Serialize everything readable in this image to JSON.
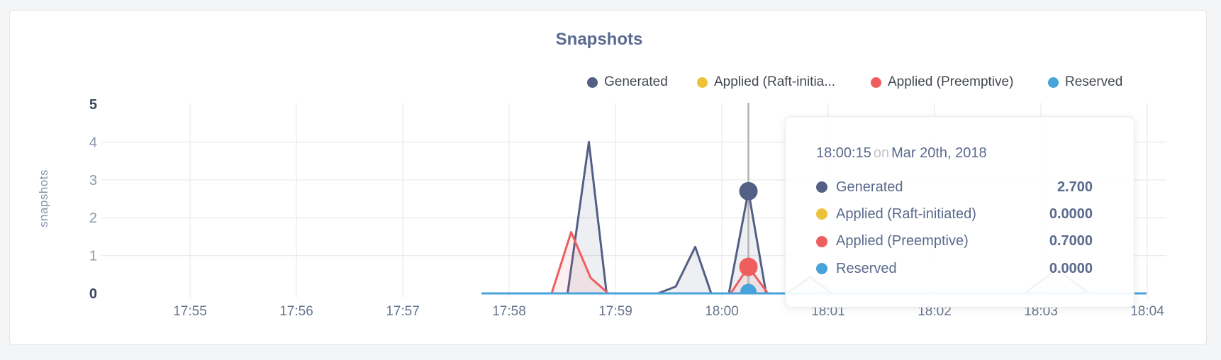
{
  "chart_data": {
    "type": "line",
    "title": "Snapshots",
    "ylabel": "snapshots",
    "xlabel": "",
    "x_ticks": [
      "17:55",
      "17:56",
      "17:57",
      "17:58",
      "17:59",
      "18:00",
      "18:01",
      "18:02",
      "18:03",
      "18:04"
    ],
    "y_ticks": [
      0,
      1,
      2,
      3,
      4,
      5
    ],
    "ylim": [
      0,
      5
    ],
    "grid": true,
    "legend_position": "top-right",
    "x_unit": "time (HH:MM:SS)",
    "series": [
      {
        "name": "Generated",
        "color": "#545f85",
        "fill": "rgba(84,95,133,0.10)",
        "points": [
          [
            "17:57:45",
            0
          ],
          [
            "17:58:33",
            0
          ],
          [
            "17:58:45",
            4.0
          ],
          [
            "17:58:55",
            0
          ],
          [
            "17:59:24",
            0
          ],
          [
            "17:59:34",
            0.18
          ],
          [
            "17:59:45",
            1.23
          ],
          [
            "17:59:54",
            0
          ],
          [
            "18:00:04",
            0
          ],
          [
            "18:00:15",
            2.7
          ],
          [
            "18:00:25",
            0
          ],
          [
            "18:00:37",
            0
          ],
          [
            "18:00:50",
            0.43
          ],
          [
            "18:01:02",
            0
          ],
          [
            "18:02:51",
            0
          ],
          [
            "18:03:09",
            0.65
          ],
          [
            "18:03:27",
            0
          ],
          [
            "18:03:59",
            0
          ]
        ]
      },
      {
        "name": "Applied (Raft-initiated)",
        "color": "#edc239",
        "points": [
          [
            "17:57:45",
            0
          ],
          [
            "18:03:59",
            0
          ]
        ]
      },
      {
        "name": "Applied (Preemptive)",
        "color": "#ef5e5e",
        "fill": "rgba(239,94,94,0.09)",
        "points": [
          [
            "17:57:45",
            0
          ],
          [
            "17:58:24",
            0
          ],
          [
            "17:58:35",
            1.62
          ],
          [
            "17:58:46",
            0.41
          ],
          [
            "17:58:56",
            0
          ],
          [
            "18:00:05",
            0
          ],
          [
            "18:00:15",
            0.7
          ],
          [
            "18:00:26",
            0
          ],
          [
            "18:03:59",
            0
          ]
        ]
      },
      {
        "name": "Reserved",
        "color": "#47a3d9",
        "points": [
          [
            "17:57:45",
            0
          ],
          [
            "18:03:59",
            0
          ]
        ]
      }
    ],
    "hover": {
      "time": "18:00:15",
      "values": {
        "Generated": 2.7,
        "Applied (Raft-initiated)": 0.0,
        "Applied (Preemptive)": 0.7,
        "Reserved": 0.0
      }
    }
  },
  "legend": [
    {
      "label": "Generated",
      "color": "#545f85"
    },
    {
      "label": "Applied (Raft-initia...",
      "color": "#edc239"
    },
    {
      "label": "Applied (Preemptive)",
      "color": "#ef5e5e"
    },
    {
      "label": "Reserved",
      "color": "#47a3d9"
    }
  ],
  "tooltip": {
    "time": "18:00:15",
    "preposition": "on",
    "date": "Mar 20th, 2018",
    "rows": [
      {
        "label": "Generated",
        "value": "2.700",
        "color": "#545f85"
      },
      {
        "label": "Applied (Raft-initiated)",
        "value": "0.0000",
        "color": "#edc239"
      },
      {
        "label": "Applied (Preemptive)",
        "value": "0.7000",
        "color": "#ef5e5e"
      },
      {
        "label": "Reserved",
        "value": "0.0000",
        "color": "#47a3d9"
      }
    ]
  }
}
